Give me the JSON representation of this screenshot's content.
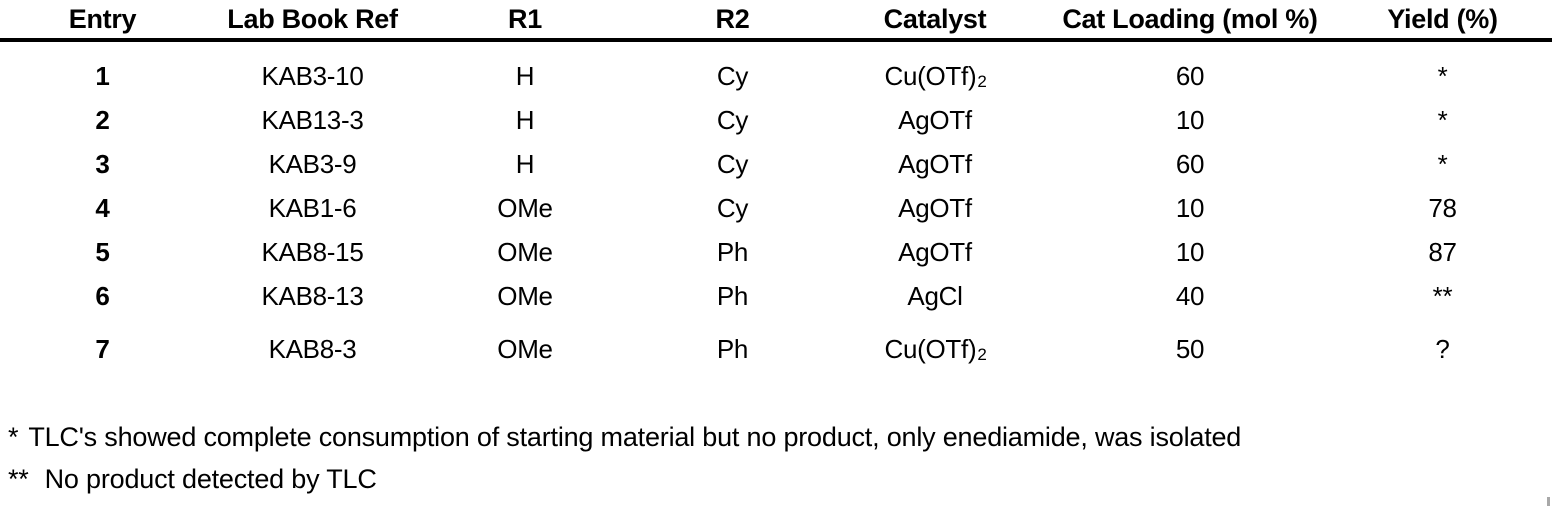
{
  "table": {
    "columns": [
      {
        "label": "Entry"
      },
      {
        "label": "Lab Book Ref"
      },
      {
        "label": "R1"
      },
      {
        "label": "R2"
      },
      {
        "label": "Catalyst"
      },
      {
        "label": "Cat Loading (mol %)"
      },
      {
        "label": "Yield (%)"
      }
    ],
    "rows": [
      {
        "entry": "1",
        "lab_book_ref": "KAB3-10",
        "r1": "H",
        "r2": "Cy",
        "catalyst": "Cu(OTf)",
        "catalyst_subscript": "2",
        "cat_loading": "60",
        "yield": "*"
      },
      {
        "entry": "2",
        "lab_book_ref": "KAB13-3",
        "r1": "H",
        "r2": "Cy",
        "catalyst": "AgOTf",
        "catalyst_subscript": "",
        "cat_loading": "10",
        "yield": "*"
      },
      {
        "entry": "3",
        "lab_book_ref": "KAB3-9",
        "r1": "H",
        "r2": "Cy",
        "catalyst": "AgOTf",
        "catalyst_subscript": "",
        "cat_loading": "60",
        "yield": "*"
      },
      {
        "entry": "4",
        "lab_book_ref": "KAB1-6",
        "r1": "OMe",
        "r2": "Cy",
        "catalyst": "AgOTf",
        "catalyst_subscript": "",
        "cat_loading": "10",
        "yield": "78"
      },
      {
        "entry": "5",
        "lab_book_ref": "KAB8-15",
        "r1": "OMe",
        "r2": "Ph",
        "catalyst": "AgOTf",
        "catalyst_subscript": "",
        "cat_loading": "10",
        "yield": "87"
      },
      {
        "entry": "6",
        "lab_book_ref": "KAB8-13",
        "r1": "OMe",
        "r2": "Ph",
        "catalyst": "AgCl",
        "catalyst_subscript": "",
        "cat_loading": "40",
        "yield": "**"
      },
      {
        "entry": "7",
        "lab_book_ref": "KAB8-3",
        "r1": "OMe",
        "r2": "Ph",
        "catalyst": "Cu(OTf)",
        "catalyst_subscript": "2",
        "cat_loading": "50",
        "yield": "?"
      }
    ]
  },
  "footnotes": [
    {
      "marker": "*",
      "text": "TLC's showed complete consumption of starting material but no product, only enediamide, was isolated"
    },
    {
      "marker": "**",
      "text": "No product detected by TLC"
    }
  ]
}
